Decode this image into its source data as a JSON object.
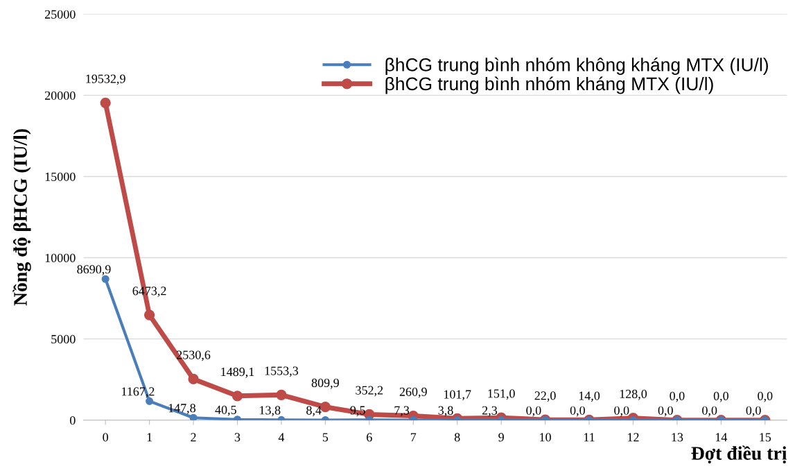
{
  "chart_data": {
    "type": "line",
    "xlabel": "Đợt điều trị",
    "ylabel": "Nồng độ βHCG (IU/l)",
    "categories": [
      "0",
      "1",
      "2",
      "3",
      "4",
      "5",
      "6",
      "7",
      "8",
      "9",
      "10",
      "11",
      "12",
      "13",
      "14",
      "15"
    ],
    "series": [
      {
        "name": "βhCG trung bình nhóm không kháng MTX (IU/l)",
        "color": "#4a7ebb",
        "values": [
          8690.9,
          1167.2,
          147.8,
          40.5,
          13.8,
          8.4,
          9.5,
          7.3,
          3.8,
          2.3,
          0.0,
          0.0,
          0.0,
          0.0,
          0.0,
          0.0
        ],
        "value_labels": [
          "8690,9",
          "1167,2",
          "147,8",
          "40,5",
          "13,8",
          "8,4",
          "9,5",
          "7,3",
          "3,8",
          "2,3",
          "0,0",
          "0,0",
          "0,0",
          "0,0",
          "0,0",
          "0,0"
        ]
      },
      {
        "name": "βhCG trung bình nhóm kháng MTX (IU/l)",
        "color": "#be4b48",
        "values": [
          19532.9,
          6473.2,
          2530.6,
          1489.1,
          1553.3,
          809.9,
          352.2,
          260.9,
          101.7,
          151.0,
          22.0,
          14.0,
          128.0,
          0.0,
          0.0,
          0.0
        ],
        "value_labels": [
          "19532,9",
          "6473,2",
          "2530,6",
          "1489,1",
          "1553,3",
          "809,9",
          "352,2",
          "260,9",
          "101,7",
          "151,0",
          "22,0",
          "14,0",
          "128,0",
          "0,0",
          "0,0",
          "0,0"
        ]
      }
    ],
    "ylim": [
      0,
      25000
    ],
    "yticks": [
      0,
      5000,
      10000,
      15000,
      20000,
      25000
    ],
    "grid": "y",
    "legend": "top right",
    "marker": "circle",
    "line_style": "solid"
  }
}
